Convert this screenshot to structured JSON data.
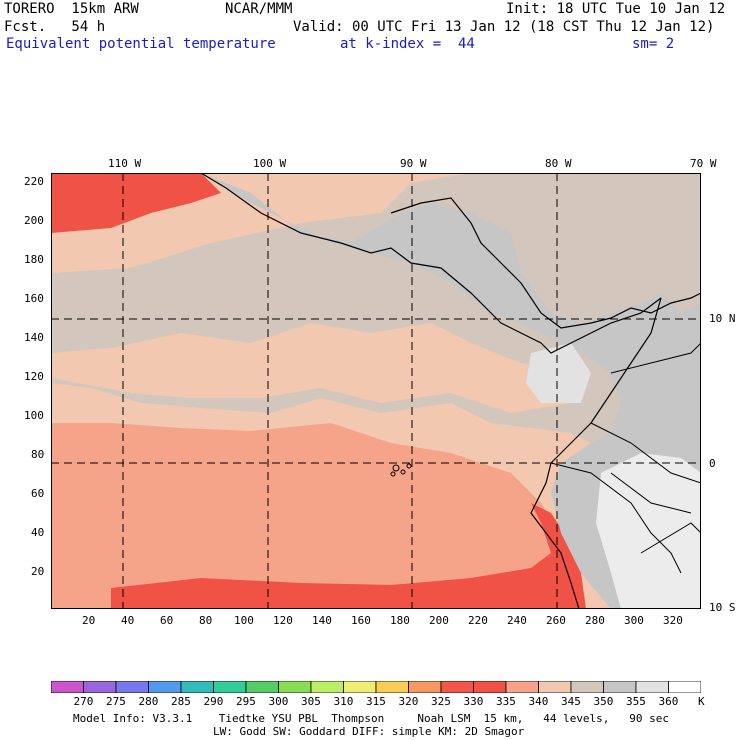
{
  "header": {
    "model": "TORERO  15km ARW",
    "org": "NCAR/MMM",
    "init": "Init: 18 UTC Tue 10 Jan 12",
    "fcst": "Fcst.   54 h",
    "valid": "Valid: 00 UTC Fri 13 Jan 12 (18 CST Thu 12 Jan 12)",
    "field": "Equivalent potential temperature",
    "level": "at k-index =  44",
    "smooth": "sm= 2"
  },
  "map": {
    "top_lon_labels": [
      "110 W",
      "100 W",
      "90 W",
      "80 W",
      "70 W"
    ],
    "right_lat_labels": [
      "10 N",
      "0",
      "10 S"
    ],
    "left_grid_labels": [
      "220",
      "200",
      "180",
      "160",
      "140",
      "120",
      "100",
      "80",
      "60",
      "40",
      "20"
    ],
    "bottom_grid_labels": [
      "20",
      "40",
      "60",
      "80",
      "100",
      "120",
      "140",
      "160",
      "180",
      "200",
      "220",
      "240",
      "260",
      "280",
      "300",
      "320"
    ]
  },
  "colorbar": {
    "levels": [
      "270",
      "275",
      "280",
      "285",
      "290",
      "295",
      "300",
      "305",
      "310",
      "315",
      "320",
      "325",
      "330",
      "335",
      "340",
      "345",
      "350",
      "355",
      "360"
    ],
    "unit": "K",
    "colors": [
      "#cc55cc",
      "#9966dd",
      "#7777ee",
      "#5599ee",
      "#33bbbb",
      "#33cc99",
      "#55cc66",
      "#88dd55",
      "#bbee66",
      "#eeee77",
      "#f8cc55",
      "#f49966",
      "#f2574a",
      "#f05246",
      "#f5a48a",
      "#f2c8b0",
      "#d3c6bc",
      "#c6c6c6",
      "#e2e2e2",
      "#ffffff"
    ]
  },
  "footer": {
    "line1": "Model Info: V3.3.1    Tiedtke YSU PBL  Thompson     Noah LSM  15 km,   44 levels,   90 sec",
    "line2": "LW: Godd SW: Goddard DIFF: simple KM: 2D Smagor"
  }
}
